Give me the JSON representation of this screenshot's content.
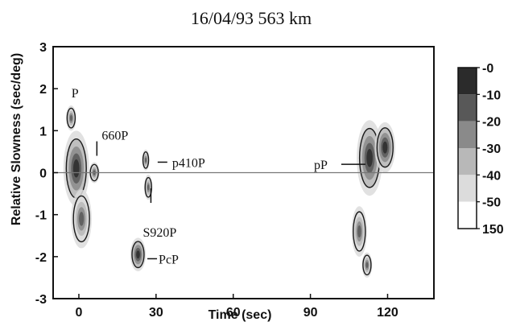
{
  "chart_data": {
    "type": "heatmap",
    "title": "16/04/93 563 km",
    "xlabel": "Time (sec)",
    "ylabel": "Relative Slowness (sec/deg)",
    "xlim": [
      -10,
      138
    ],
    "ylim": [
      -3,
      3
    ],
    "x_ticks": [
      0,
      30,
      60,
      90,
      120
    ],
    "y_ticks": [
      3,
      2,
      1,
      0,
      -1,
      -2,
      -3
    ],
    "reference_line_y": 0,
    "grid": false,
    "colorbar": {
      "placement": "right",
      "ticks": [
        "-0",
        "-10",
        "-20",
        "-30",
        "-40",
        "-50",
        "150"
      ],
      "levels": [
        {
          "range": "-0 to -10",
          "color": "#2b2b2b"
        },
        {
          "range": "-10 to -20",
          "color": "#585858"
        },
        {
          "range": "-20 to -30",
          "color": "#8a8a8a"
        },
        {
          "range": "-30 to -40",
          "color": "#b8b8b8"
        },
        {
          "range": "-40 to -50",
          "color": "#dcdcdc"
        },
        {
          "range": "-50 to 150",
          "color": "#ffffff"
        }
      ]
    },
    "annotations": [
      {
        "label": "P",
        "time": -1,
        "slowness": 1.6
      },
      {
        "label": "660P",
        "time": 7,
        "slowness": 0.9
      },
      {
        "label": "p410P",
        "time": 30,
        "slowness": 0.25
      },
      {
        "label": "S920P",
        "time": 28,
        "slowness": -0.95
      },
      {
        "label": "PcP",
        "time": 26,
        "slowness": -2.05
      },
      {
        "label": "pP",
        "time": 102,
        "slowness": 0.2
      }
    ],
    "energy_patches": [
      {
        "time": -1,
        "slowness": 0.1,
        "sx": 5,
        "sy": 0.9,
        "level": 0.95
      },
      {
        "time": -3,
        "slowness": 1.3,
        "sx": 2,
        "sy": 0.3,
        "level": 0.55
      },
      {
        "time": 1,
        "slowness": -1.1,
        "sx": 4,
        "sy": 0.7,
        "level": 0.55
      },
      {
        "time": 6,
        "slowness": 0.0,
        "sx": 2,
        "sy": 0.25,
        "level": 0.5
      },
      {
        "time": 26,
        "slowness": 0.3,
        "sx": 1.4,
        "sy": 0.25,
        "level": 0.6
      },
      {
        "time": 27,
        "slowness": -0.35,
        "sx": 1.6,
        "sy": 0.3,
        "level": 0.6
      },
      {
        "time": 23,
        "slowness": -1.95,
        "sx": 3,
        "sy": 0.4,
        "level": 0.85
      },
      {
        "time": 113,
        "slowness": 0.35,
        "sx": 5,
        "sy": 0.9,
        "level": 1.0
      },
      {
        "time": 109,
        "slowness": -1.4,
        "sx": 3,
        "sy": 0.6,
        "level": 0.5
      },
      {
        "time": 119,
        "slowness": 0.6,
        "sx": 4,
        "sy": 0.6,
        "level": 0.8
      },
      {
        "time": 112,
        "slowness": -2.2,
        "sx": 2,
        "sy": 0.3,
        "level": 0.5
      }
    ]
  }
}
